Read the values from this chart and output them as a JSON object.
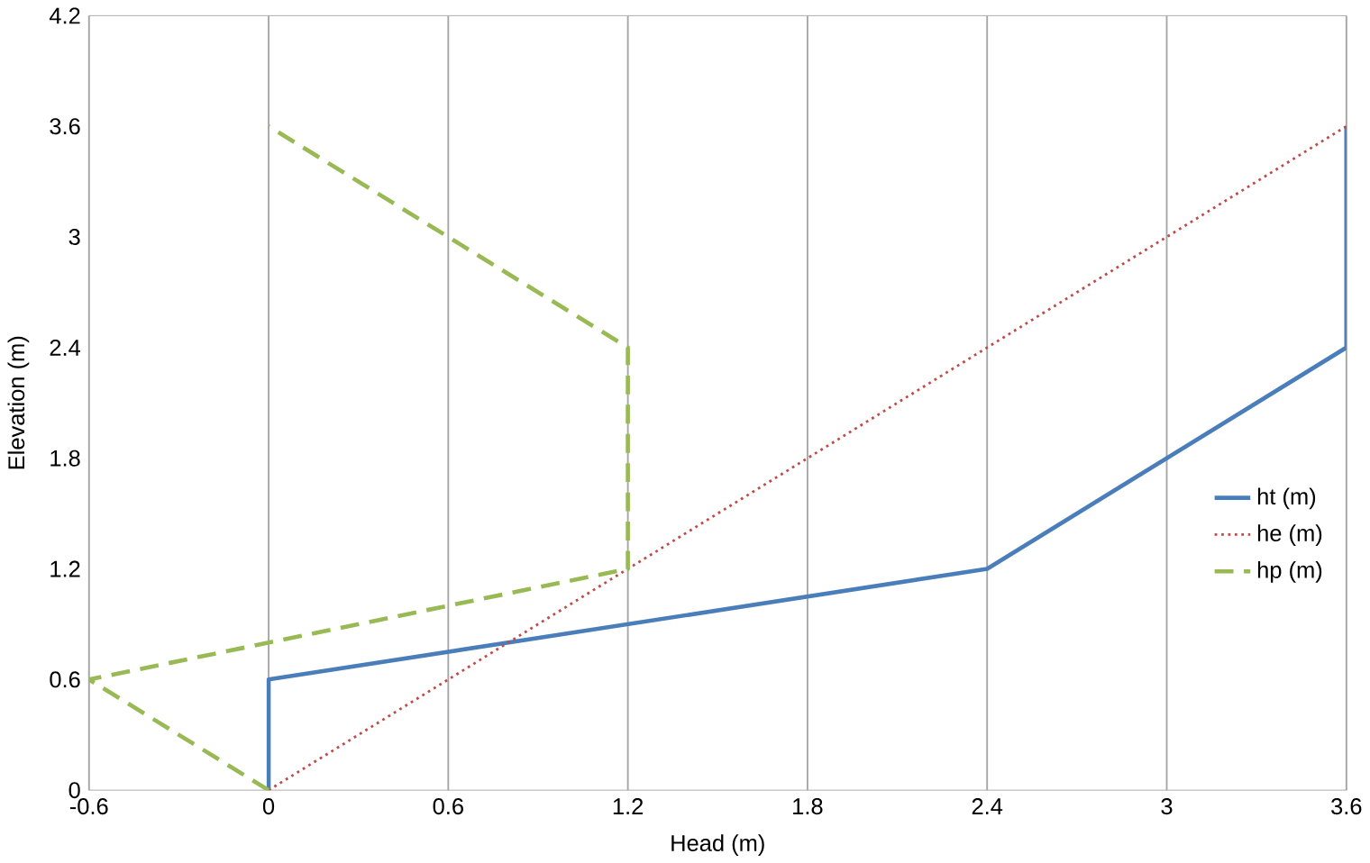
{
  "chart_data": {
    "type": "line",
    "xlabel": "Head (m)",
    "ylabel": "Elevation (m)",
    "series": [
      {
        "name": "ht (m)",
        "color": "#4a7ebb",
        "line_style": "solid",
        "x": [
          0,
          0,
          2.4,
          3.6,
          3.6
        ],
        "values": [
          0,
          0.6,
          1.2,
          2.4,
          3.6
        ]
      },
      {
        "name": "he (m)",
        "color": "#be4b48",
        "line_style": "dotted",
        "x": [
          0,
          3.6
        ],
        "values": [
          0,
          3.6
        ]
      },
      {
        "name": "hp (m)",
        "color": "#98b954",
        "line_style": "dashed",
        "x": [
          0,
          -0.6,
          1.2,
          1.2,
          0
        ],
        "values": [
          0,
          0.6,
          1.2,
          2.4,
          3.6
        ]
      }
    ],
    "xlim": [
      -0.6,
      3.6
    ],
    "xticks": [
      -0.6,
      0,
      0.6,
      1.2,
      1.8,
      2.4,
      3,
      3.6
    ],
    "ylim": [
      0,
      4.2
    ],
    "yticks": [
      0,
      0.6,
      1.2,
      1.8,
      2.4,
      3,
      3.6,
      4.2
    ],
    "grid": "x",
    "legend": "right",
    "marker": "none"
  }
}
